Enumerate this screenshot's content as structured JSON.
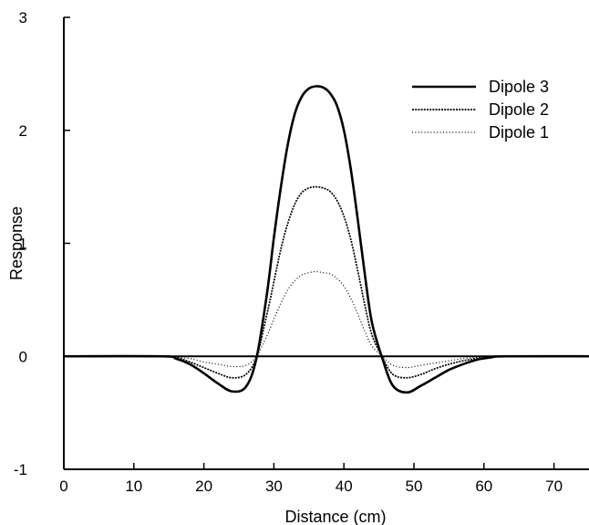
{
  "chart_data": {
    "type": "line",
    "title": "",
    "xlabel": "Distance (cm)",
    "ylabel": "Response",
    "xlim": [
      0,
      75
    ],
    "ylim": [
      -1,
      3
    ],
    "xticks": [
      0,
      10,
      20,
      30,
      40,
      50,
      60,
      70
    ],
    "yticks": [
      -1,
      0,
      1,
      2,
      3
    ],
    "grid": false,
    "legend_position": "top-right",
    "zero_line": true,
    "x": [
      0,
      14,
      16,
      18,
      20,
      22,
      24,
      26,
      27.5,
      29,
      30,
      31,
      32,
      33,
      34,
      35,
      36,
      37,
      38,
      39,
      40,
      41,
      42,
      43,
      44,
      45.5,
      47,
      49,
      51,
      53,
      55,
      57,
      59,
      61,
      63,
      75
    ],
    "series": [
      {
        "name": "Dipole 3",
        "style": "solid",
        "color": "#000000",
        "values": [
          0,
          0,
          -0.02,
          -0.07,
          -0.15,
          -0.24,
          -0.31,
          -0.27,
          -0.02,
          0.55,
          1.05,
          1.5,
          1.88,
          2.15,
          2.3,
          2.37,
          2.39,
          2.38,
          2.33,
          2.22,
          2.0,
          1.65,
          1.2,
          0.72,
          0.3,
          -0.02,
          -0.26,
          -0.32,
          -0.26,
          -0.19,
          -0.12,
          -0.07,
          -0.03,
          -0.01,
          0,
          0
        ]
      },
      {
        "name": "Dipole 2",
        "style": "dense-dotted",
        "color": "#000000",
        "values": [
          0,
          0,
          -0.01,
          -0.05,
          -0.1,
          -0.15,
          -0.19,
          -0.16,
          -0.01,
          0.37,
          0.66,
          0.95,
          1.18,
          1.35,
          1.45,
          1.49,
          1.5,
          1.49,
          1.46,
          1.38,
          1.24,
          1.03,
          0.75,
          0.45,
          0.19,
          -0.01,
          -0.16,
          -0.19,
          -0.16,
          -0.11,
          -0.07,
          -0.04,
          -0.02,
          -0.01,
          0,
          0
        ]
      },
      {
        "name": "Dipole 1",
        "style": "sparse-dotted",
        "color": "#000000",
        "values": [
          0,
          0,
          -0.01,
          -0.02,
          -0.05,
          -0.07,
          -0.09,
          -0.08,
          0,
          0.18,
          0.33,
          0.47,
          0.59,
          0.67,
          0.72,
          0.74,
          0.75,
          0.74,
          0.73,
          0.69,
          0.62,
          0.51,
          0.37,
          0.22,
          0.09,
          0,
          -0.08,
          -0.1,
          -0.08,
          -0.06,
          -0.04,
          -0.02,
          -0.01,
          0,
          0,
          0
        ]
      }
    ]
  }
}
